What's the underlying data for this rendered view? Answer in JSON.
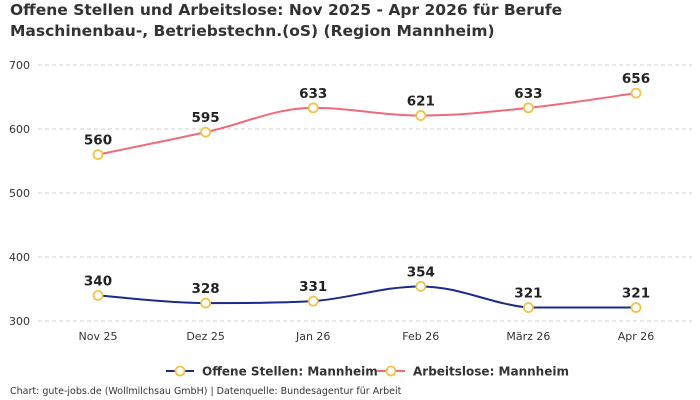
{
  "chart_data": {
    "type": "line",
    "title": "Offene Stellen und Arbeitslose: Nov 2025 - Apr 2026 für Berufe Maschinenbau-, Betriebstechn.(oS) (Region Mannheim)",
    "categories": [
      "Nov 25",
      "Dez 25",
      "Jan 26",
      "Feb 26",
      "März 26",
      "Apr 26"
    ],
    "series": [
      {
        "name": "Offene Stellen: Mannheim",
        "values": [
          340,
          328,
          331,
          354,
          321,
          321
        ],
        "color": "#1a2b8c"
      },
      {
        "name": "Arbeitslose: Mannheim",
        "values": [
          560,
          595,
          633,
          621,
          633,
          656
        ],
        "color": "#f0697a"
      }
    ],
    "y_ticks": [
      300,
      400,
      500,
      600,
      700
    ],
    "ylim": [
      300,
      700
    ],
    "grid": true,
    "legend_position": "bottom-center",
    "marker_color": "#f5c242"
  },
  "footer": "Chart: gute-jobs.de (Wollmilchsau GmbH) | Datenquelle: Bundesagentur für Arbeit"
}
